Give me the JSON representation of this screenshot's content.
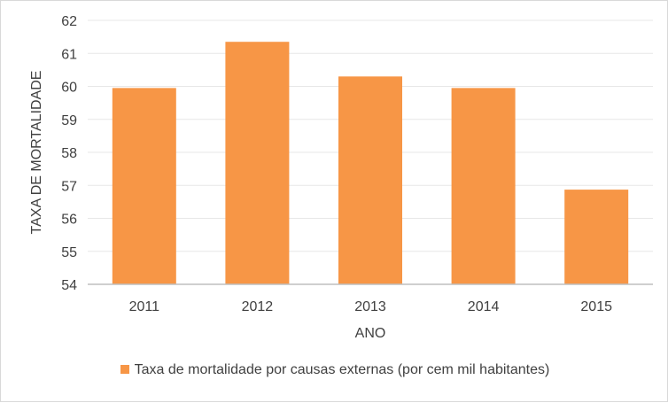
{
  "chart_data": {
    "type": "bar",
    "categories": [
      "2011",
      "2012",
      "2013",
      "2014",
      "2015"
    ],
    "series": [
      {
        "name": "Taxa de mortalidade por causas externas (por cem mil habitantes)",
        "values": [
          59.95,
          61.35,
          60.3,
          59.95,
          56.87
        ]
      }
    ],
    "xlabel": "ANO",
    "ylabel": "TAXA DE MORTALIDADE",
    "ylim": [
      54,
      62
    ],
    "yticks": [
      "54",
      "55",
      "56",
      "57",
      "58",
      "59",
      "60",
      "61",
      "62"
    ],
    "grid": true,
    "legend_position": "bottom",
    "colors": {
      "bar": "#F79646",
      "grid": "#e7e7e7",
      "axis": "#bfbfbf",
      "text": "#404040"
    }
  }
}
